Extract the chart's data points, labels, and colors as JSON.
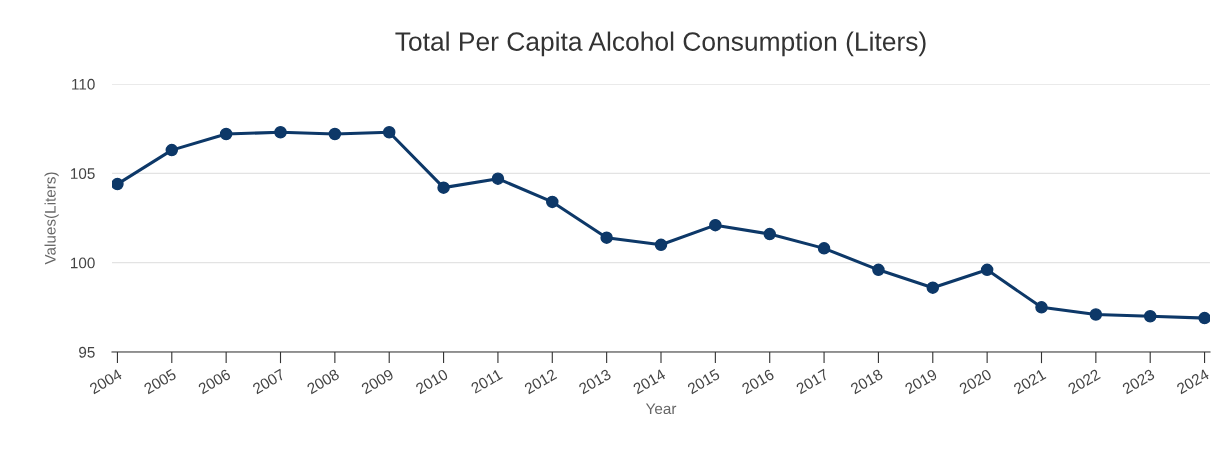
{
  "chart_data": {
    "type": "line",
    "title": "Total Per Capita Alcohol Consumption (Liters)",
    "xlabel": "Year",
    "ylabel": "Values(Liters)",
    "categories": [
      "2004",
      "2005",
      "2006",
      "2007",
      "2008",
      "2009",
      "2010",
      "2011",
      "2012",
      "2013",
      "2014",
      "2015",
      "2016",
      "2017",
      "2018",
      "2019",
      "2020",
      "2021",
      "2022",
      "2023",
      "2024"
    ],
    "series": [
      {
        "color": "#0d3868",
        "values": [
          104.4,
          106.3,
          107.2,
          107.3,
          107.2,
          107.3,
          104.2,
          104.7,
          103.4,
          101.4,
          101.0,
          102.1,
          101.6,
          100.8,
          99.6,
          98.6,
          99.6,
          97.5,
          97.1,
          97.0,
          96.9
        ]
      }
    ],
    "ylim": [
      95,
      110
    ],
    "yticks": [
      95,
      100,
      105,
      110
    ],
    "grid": "y",
    "marker": "circle",
    "line_style": "solid",
    "legend": false
  }
}
